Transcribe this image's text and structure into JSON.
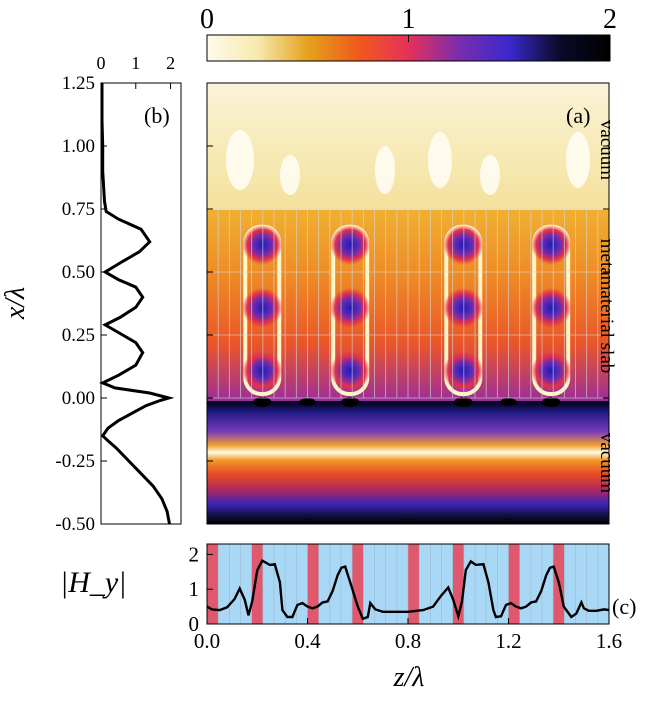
{
  "chart_data": [
    {
      "panel": "colorbar",
      "type": "colorbar",
      "ticks": [
        "0",
        "1",
        "2"
      ],
      "range": [
        0,
        2
      ],
      "colors": [
        "#fffbec",
        "#f6eab0",
        "#e5a21e",
        "#f05a1a",
        "#e6305a",
        "#7a2dae",
        "#3a29cc",
        "#0a0a2a",
        "#000000"
      ]
    },
    {
      "panel_label": "(a)",
      "type": "heatmap",
      "xlabel": "z/λ",
      "ylabel": "x/λ",
      "xlim": [
        0,
        1.6
      ],
      "ylim": [
        -0.5,
        1.25
      ],
      "xticks": [
        "0.0",
        "0.4",
        "0.8",
        "1.2",
        "1.6"
      ],
      "yticks": [
        "-0.50",
        "-0.25",
        "0.00",
        "0.25",
        "0.50",
        "0.75",
        "1.00",
        "1.25"
      ],
      "region_labels": [
        "vacuum",
        "metamaterial slab",
        "vacuum"
      ],
      "slab_range": [
        0.0,
        0.75
      ],
      "hotspot_z": [
        0.22,
        0.57,
        1.02,
        1.37
      ],
      "hotspot_x": [
        0.06,
        0.31,
        0.56
      ]
    },
    {
      "panel_label": "(b)",
      "type": "line",
      "xlim": [
        0,
        2.3
      ],
      "xticks": [
        "0",
        "1",
        "2"
      ],
      "x": [
        1.97,
        1.9,
        1.75,
        1.5,
        1.15,
        0.8,
        0.45,
        0.2,
        0.05,
        0.2,
        0.5,
        0.9,
        1.3,
        1.7,
        1.95,
        1.4,
        0.4,
        0.05,
        0.5,
        1.0,
        1.2,
        1.0,
        0.5,
        0.12,
        0.55,
        1.0,
        1.2,
        1.0,
        0.5,
        0.12,
        0.6,
        1.1,
        1.4,
        1.15,
        0.5,
        0.15,
        0.1,
        0.05,
        0.05,
        0.03,
        0.03
      ],
      "y": [
        -0.5,
        -0.45,
        -0.4,
        -0.35,
        -0.3,
        -0.25,
        -0.2,
        -0.17,
        -0.15,
        -0.12,
        -0.09,
        -0.06,
        -0.03,
        -0.01,
        0.0,
        0.02,
        0.04,
        0.06,
        0.09,
        0.13,
        0.18,
        0.22,
        0.26,
        0.29,
        0.32,
        0.36,
        0.4,
        0.44,
        0.47,
        0.5,
        0.54,
        0.58,
        0.62,
        0.67,
        0.71,
        0.74,
        0.78,
        0.9,
        1.0,
        1.1,
        1.25
      ]
    },
    {
      "panel_label": "(c)",
      "type": "line",
      "xlim": [
        0,
        1.6
      ],
      "ylim": [
        0,
        2.3
      ],
      "xticks": [
        "0.0",
        "0.4",
        "0.8",
        "1.2",
        "1.6"
      ],
      "yticks": [
        "0",
        "1",
        "2"
      ],
      "ylabel": "|H_y|",
      "x": [
        0.0,
        0.02,
        0.05,
        0.08,
        0.11,
        0.13,
        0.15,
        0.165,
        0.18,
        0.2,
        0.22,
        0.25,
        0.27,
        0.29,
        0.3,
        0.32,
        0.34,
        0.36,
        0.38,
        0.4,
        0.42,
        0.44,
        0.46,
        0.48,
        0.5,
        0.52,
        0.535,
        0.55,
        0.57,
        0.6,
        0.62,
        0.64,
        0.65,
        0.67,
        0.7,
        0.74,
        0.8,
        0.86,
        0.9,
        0.93,
        0.96,
        0.98,
        1.0,
        1.015,
        1.03,
        1.05,
        1.07,
        1.1,
        1.12,
        1.14,
        1.15,
        1.17,
        1.19,
        1.21,
        1.23,
        1.25,
        1.27,
        1.29,
        1.31,
        1.33,
        1.35,
        1.365,
        1.38,
        1.4,
        1.42,
        1.45,
        1.47,
        1.49,
        1.5,
        1.52,
        1.55,
        1.58,
        1.6
      ],
      "y": [
        0.5,
        0.42,
        0.4,
        0.48,
        0.72,
        1.02,
        0.7,
        0.25,
        0.65,
        1.55,
        1.82,
        1.7,
        1.72,
        1.2,
        0.4,
        0.2,
        0.2,
        0.55,
        0.6,
        0.5,
        0.45,
        0.5,
        0.62,
        0.65,
        0.95,
        1.4,
        1.62,
        1.65,
        1.2,
        0.5,
        0.15,
        0.2,
        0.6,
        0.42,
        0.35,
        0.35,
        0.35,
        0.4,
        0.5,
        0.8,
        1.05,
        0.7,
        0.22,
        0.65,
        1.55,
        1.8,
        1.7,
        1.72,
        1.2,
        0.4,
        0.2,
        0.22,
        0.55,
        0.6,
        0.5,
        0.45,
        0.5,
        0.62,
        0.65,
        0.95,
        1.4,
        1.62,
        1.65,
        1.2,
        0.5,
        0.2,
        0.3,
        0.62,
        0.45,
        0.38,
        0.38,
        0.42,
        0.4
      ],
      "stripe_colors": [
        "#e0586e",
        "#a8d8f5"
      ]
    }
  ]
}
